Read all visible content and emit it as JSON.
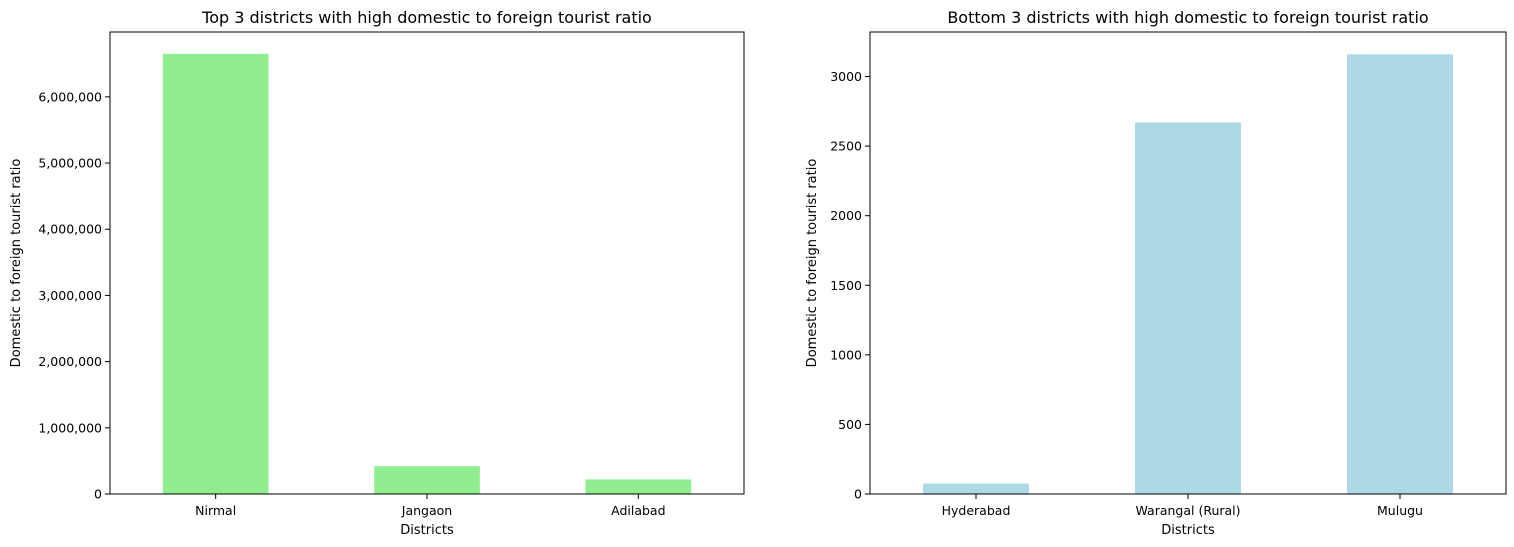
{
  "chart_data": [
    {
      "type": "bar",
      "title": "Top 3 districts with high domestic to foreign tourist ratio",
      "xlabel": "Districts",
      "ylabel": "Domestic to foreign tourist ratio",
      "categories": [
        "Nirmal",
        "Jangaon",
        "Adilabad"
      ],
      "values": [
        6650000,
        420000,
        220000
      ],
      "ylim": [
        0,
        6980000
      ],
      "yticks": [
        0,
        1000000,
        2000000,
        3000000,
        4000000,
        5000000,
        6000000
      ],
      "ytick_labels": [
        "0",
        "1,000,000",
        "2,000,000",
        "3,000,000",
        "4,000,000",
        "5,000,000",
        "6,000,000"
      ],
      "bar_color": "#90ee90",
      "grid": false
    },
    {
      "type": "bar",
      "title": "Bottom 3 districts with high domestic to foreign tourist ratio",
      "xlabel": "Districts",
      "ylabel": "Domestic to foreign tourist ratio",
      "categories": [
        "Hyderabad",
        "Warangal (Rural)",
        "Mulugu"
      ],
      "values": [
        75,
        2670,
        3160
      ],
      "ylim": [
        0,
        3320
      ],
      "yticks": [
        0,
        500,
        1000,
        1500,
        2000,
        2500,
        3000
      ],
      "ytick_labels": [
        "0",
        "500",
        "1000",
        "1500",
        "2000",
        "2500",
        "3000"
      ],
      "bar_color": "#add8e6",
      "grid": false
    }
  ]
}
